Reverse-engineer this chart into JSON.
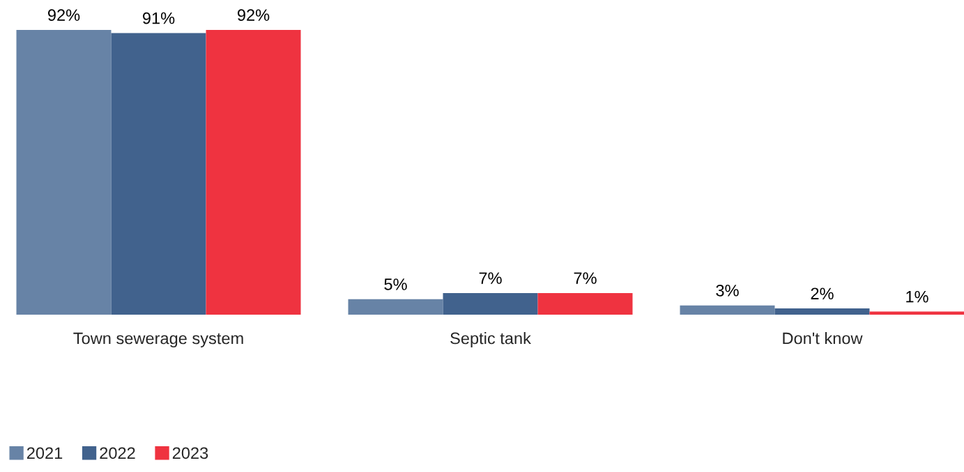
{
  "chart_data": {
    "type": "bar",
    "categories": [
      "Town sewerage system",
      "Septic tank",
      "Don't know"
    ],
    "series": [
      {
        "name": "2021",
        "color": "#6783a6",
        "values": [
          92,
          5,
          3
        ],
        "value_labels": [
          "92%",
          "5%",
          "3%"
        ]
      },
      {
        "name": "2022",
        "color": "#41628d",
        "values": [
          91,
          7,
          2
        ],
        "value_labels": [
          "91%",
          "7%",
          "2%"
        ]
      },
      {
        "name": "2023",
        "color": "#ef3340",
        "values": [
          92,
          7,
          1
        ],
        "value_labels": [
          "92%",
          "7%",
          "1%"
        ]
      }
    ],
    "legend": "bottom left",
    "tick_labels": "x"
  }
}
